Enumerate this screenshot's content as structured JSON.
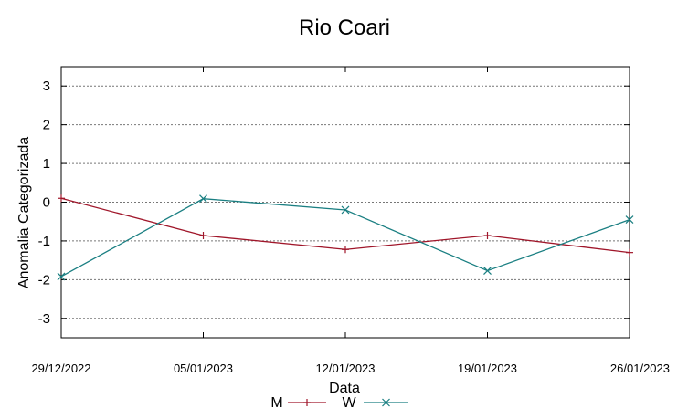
{
  "chart_data": {
    "type": "line",
    "title": "Rio Coari",
    "xlabel": "Data",
    "ylabel": "Anomalia Categorizada",
    "categories": [
      "29/12/2022",
      "05/01/2023",
      "12/01/2023",
      "19/01/2023",
      "26/01/2023"
    ],
    "ylim": [
      -3.5,
      3.5
    ],
    "yticks": [
      3,
      2,
      1,
      0,
      -1,
      -2,
      -3
    ],
    "ytick_labels": [
      "3",
      "2",
      "1",
      "0",
      "-1",
      "-2",
      "-3"
    ],
    "grid": true,
    "legend_position": "bottom-center",
    "series": [
      {
        "name": "M",
        "marker": "plus",
        "color": "#a0162a",
        "values": [
          0.1,
          -0.86,
          -1.22,
          -0.86,
          -1.3
        ]
      },
      {
        "name": "W",
        "marker": "x",
        "color": "#1a7f82",
        "values": [
          -1.92,
          0.09,
          -0.2,
          -1.77,
          -0.45
        ]
      }
    ]
  }
}
